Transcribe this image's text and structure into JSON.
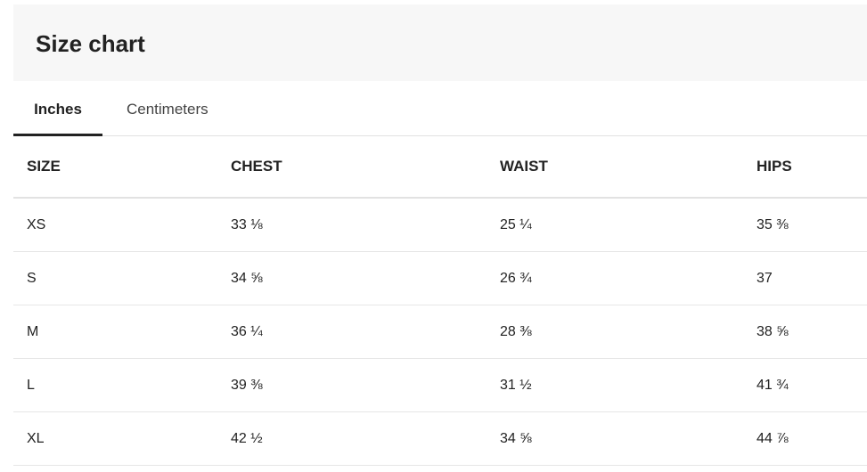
{
  "header": {
    "title": "Size chart"
  },
  "tabs": [
    {
      "label": "Inches",
      "active": true
    },
    {
      "label": "Centimeters",
      "active": false
    }
  ],
  "table": {
    "columns": [
      "SIZE",
      "CHEST",
      "WAIST",
      "HIPS"
    ],
    "rows": [
      [
        "XS",
        "33 ⅛",
        "25 ¼",
        "35 ⅜"
      ],
      [
        "S",
        "34 ⅝",
        "26 ¾",
        "37"
      ],
      [
        "M",
        "36 ¼",
        "28 ⅜",
        "38 ⅝"
      ],
      [
        "L",
        "39 ⅜",
        "31 ½",
        "41 ¾"
      ],
      [
        "XL",
        "42 ½",
        "34 ⅝",
        "44 ⅞"
      ]
    ]
  }
}
